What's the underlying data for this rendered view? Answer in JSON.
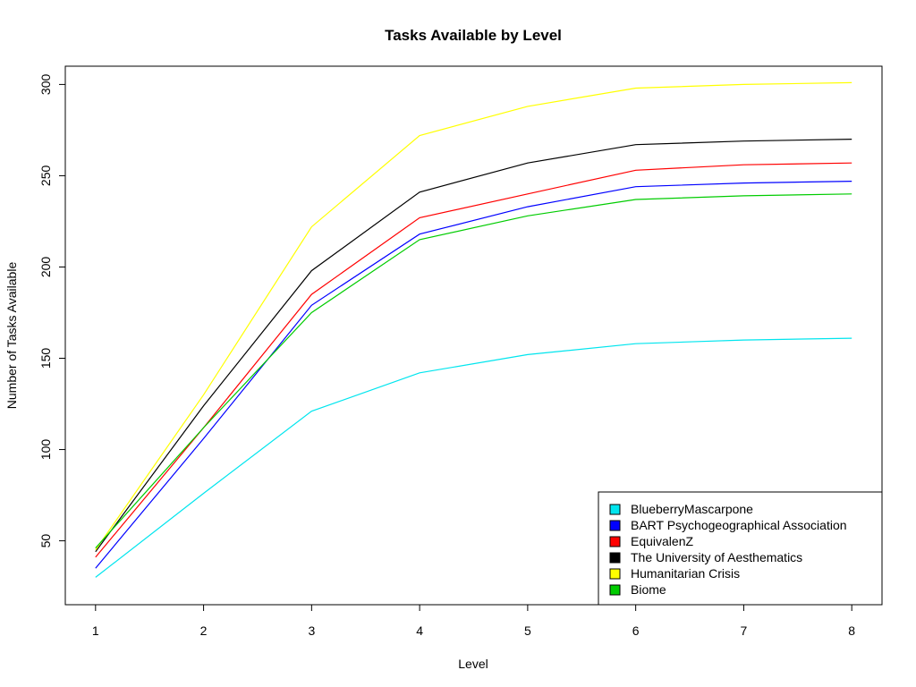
{
  "chart_data": {
    "type": "line",
    "title": "Tasks Available by Level",
    "xlabel": "Level",
    "ylabel": "Number of Tasks Available",
    "x": [
      1,
      2,
      3,
      4,
      5,
      6,
      7,
      8
    ],
    "xlim": [
      0.72,
      8.28
    ],
    "ylim": [
      15,
      310
    ],
    "xticks": [
      1,
      2,
      3,
      4,
      5,
      6,
      7,
      8
    ],
    "yticks": [
      50,
      100,
      150,
      200,
      250,
      300
    ],
    "grid": false,
    "legend_position": "bottom-right",
    "series": [
      {
        "name": "BlueberryMascarpone",
        "color": "#00e5ee",
        "values": [
          30,
          76,
          121,
          142,
          152,
          158,
          160,
          161
        ]
      },
      {
        "name": "BART Psychogeographical Association",
        "color": "#0000ff",
        "values": [
          35,
          106,
          179,
          218,
          233,
          244,
          246,
          247
        ]
      },
      {
        "name": "EquivalenZ",
        "color": "#ff0000",
        "values": [
          41,
          112,
          185,
          227,
          240,
          253,
          256,
          257
        ]
      },
      {
        "name": "The University of Aesthematics",
        "color": "#000000",
        "values": [
          44,
          124,
          198,
          241,
          257,
          267,
          269,
          270
        ]
      },
      {
        "name": "Humanitarian Crisis",
        "color": "#ffff00",
        "values": [
          45,
          130,
          222,
          272,
          288,
          298,
          300,
          301
        ]
      },
      {
        "name": "Biome",
        "color": "#00cc00",
        "values": [
          46,
          112,
          175,
          215,
          228,
          237,
          239,
          240
        ]
      }
    ]
  }
}
